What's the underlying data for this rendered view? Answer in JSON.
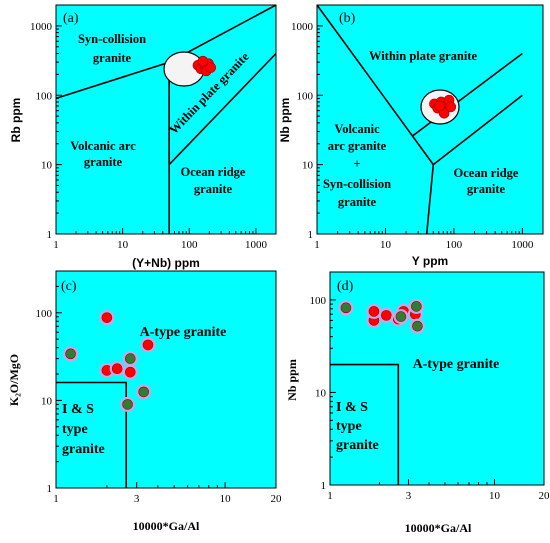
{
  "panels": {
    "a": {
      "letter": "(a)",
      "xlabel": "(Y+Nb) ppm",
      "ylabel": "Rb ppm",
      "x_ticks": [
        "1",
        "10",
        "100",
        "1000"
      ],
      "y_ticks": [
        "1",
        "10",
        "100",
        "1000"
      ],
      "fields": {
        "syn_collision_1": "Syn-collision",
        "syn_collision_2": "granite",
        "volcanic_arc_1": "Volcanic arc",
        "volcanic_arc_2": "granite",
        "within_plate": "Within plate granite",
        "ocean_ridge_1": "Ocean ridge",
        "ocean_ridge_2": "granite"
      }
    },
    "b": {
      "letter": "(b)",
      "xlabel": "Y ppm",
      "ylabel": "Nb ppm",
      "x_ticks": [
        "1",
        "10",
        "100",
        "1000"
      ],
      "y_ticks": [
        "1",
        "10",
        "100",
        "1000"
      ],
      "fields": {
        "within_plate": "Within plate granite",
        "volcanic_arc_1": "Volcanic",
        "volcanic_arc_2": "arc granite",
        "plus": "+",
        "syn_collision_1": "Syn-collision",
        "syn_collision_2": "granite",
        "ocean_ridge_1": "Ocean ridge",
        "ocean_ridge_2": "granite"
      }
    },
    "c": {
      "letter": "(c)",
      "xlabel": "10000*Ga/Al",
      "ylabel": "K₂O/MgO",
      "x_ticks": [
        "1",
        "3",
        "10",
        "20"
      ],
      "y_ticks": [
        "1",
        "10",
        "100"
      ],
      "fields": {
        "a_type": "A-type granite",
        "is_1": "I & S",
        "is_2": "type",
        "is_3": "granite"
      }
    },
    "d": {
      "letter": "(d)",
      "xlabel": "10000*Ga/Al",
      "ylabel": "Nb ppm",
      "x_ticks": [
        "1",
        "3",
        "10",
        "20"
      ],
      "y_ticks": [
        "1",
        "10",
        "100"
      ],
      "fields": {
        "a_type": "A-type granite",
        "is_1": "I & S",
        "is_2": "type",
        "is_3": "granite"
      }
    }
  },
  "colors": {
    "background": "#00ffff",
    "red_point": "#ff0000",
    "green_point": "#2e7d32",
    "halo": "#c8a6e6"
  },
  "chart_data": [
    {
      "type": "scatter",
      "panel": "a",
      "xlabel": "(Y+Nb) ppm",
      "ylabel": "Rb ppm",
      "xscale": "log",
      "yscale": "log",
      "xlim": [
        1,
        2000
      ],
      "ylim": [
        1,
        2000
      ],
      "points": [
        {
          "x": 135,
          "y": 270
        },
        {
          "x": 150,
          "y": 240
        },
        {
          "x": 165,
          "y": 290
        },
        {
          "x": 175,
          "y": 260
        },
        {
          "x": 195,
          "y": 285
        },
        {
          "x": 180,
          "y": 225
        },
        {
          "x": 210,
          "y": 250
        },
        {
          "x": 160,
          "y": 310
        }
      ]
    },
    {
      "type": "scatter",
      "panel": "b",
      "xlabel": "Y ppm",
      "ylabel": "Nb ppm",
      "xscale": "log",
      "yscale": "log",
      "xlim": [
        1,
        2000
      ],
      "ylim": [
        1,
        2000
      ],
      "points": [
        {
          "x": 52,
          "y": 75
        },
        {
          "x": 58,
          "y": 65
        },
        {
          "x": 65,
          "y": 80
        },
        {
          "x": 70,
          "y": 62
        },
        {
          "x": 78,
          "y": 72
        },
        {
          "x": 85,
          "y": 85
        },
        {
          "x": 72,
          "y": 55
        },
        {
          "x": 62,
          "y": 70
        },
        {
          "x": 90,
          "y": 68
        }
      ]
    },
    {
      "type": "scatter",
      "panel": "c",
      "xlabel": "10000*Ga/Al",
      "ylabel": "K₂O/MgO",
      "xscale": "log",
      "yscale": "log",
      "xlim": [
        1,
        20
      ],
      "ylim": [
        1,
        300
      ],
      "series": [
        {
          "name": "",
          "color": "red",
          "points": [
            {
              "x": 2.0,
              "y": 88
            },
            {
              "x": 2.0,
              "y": 22
            },
            {
              "x": 2.3,
              "y": 23
            },
            {
              "x": 2.75,
              "y": 21
            },
            {
              "x": 3.5,
              "y": 43
            }
          ]
        },
        {
          "name": "",
          "color": "green",
          "points": [
            {
              "x": 1.22,
              "y": 34
            },
            {
              "x": 2.75,
              "y": 30
            },
            {
              "x": 2.65,
              "y": 9
            },
            {
              "x": 3.3,
              "y": 12.5
            }
          ]
        }
      ]
    },
    {
      "type": "scatter",
      "panel": "d",
      "xlabel": "10000*Ga/Al",
      "ylabel": "Nb ppm",
      "xscale": "log",
      "yscale": "log",
      "xlim": [
        1,
        20
      ],
      "ylim": [
        1,
        200
      ],
      "series": [
        {
          "name": "",
          "color": "red",
          "points": [
            {
              "x": 1.85,
              "y": 60
            },
            {
              "x": 1.85,
              "y": 75
            },
            {
              "x": 2.2,
              "y": 68
            },
            {
              "x": 2.6,
              "y": 62
            },
            {
              "x": 2.8,
              "y": 75
            },
            {
              "x": 3.3,
              "y": 70
            }
          ]
        },
        {
          "name": "",
          "color": "green",
          "points": [
            {
              "x": 1.25,
              "y": 82
            },
            {
              "x": 2.7,
              "y": 66
            },
            {
              "x": 3.35,
              "y": 85
            },
            {
              "x": 3.4,
              "y": 52
            }
          ]
        }
      ]
    }
  ]
}
